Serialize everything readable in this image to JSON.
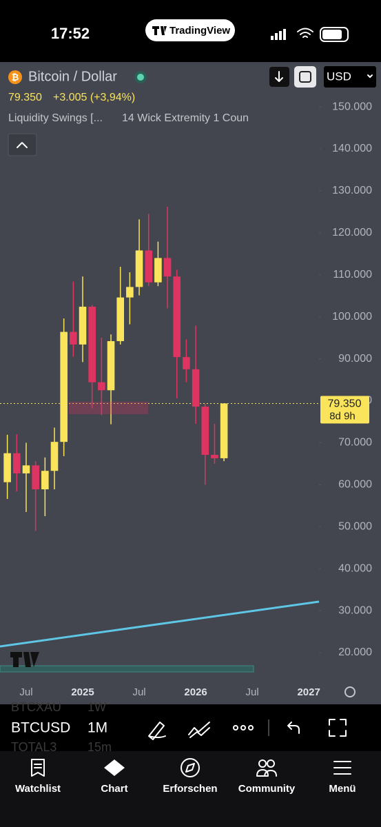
{
  "status_bar": {
    "time": "17:52",
    "app": "TradingView"
  },
  "header": {
    "symbol": "Bitcoin / Dollar",
    "price": "79.350",
    "change": "+3.005 (+3,94%)",
    "indicator": "Liquidity Swings [...",
    "indicator_params": "14 Wick Extremity 1 Coun",
    "currency": "USD"
  },
  "chart_data": {
    "type": "candlestick",
    "categories": [
      null,
      null,
      "Jul",
      null,
      null,
      null,
      null,
      null,
      "2025",
      null,
      null,
      null,
      null,
      null,
      "Jul",
      null,
      null,
      null,
      null,
      null,
      "2026",
      null,
      null,
      null,
      null,
      null,
      "Jul",
      null,
      null,
      null,
      null,
      null,
      "2027"
    ],
    "open": [
      60600,
      67500,
      62700,
      64600,
      58900,
      63300,
      70200,
      96400,
      93400,
      102400,
      84400,
      82500,
      94200,
      104600,
      107100,
      115800,
      108200,
      114000,
      109600,
      90400,
      87500,
      78600,
      67100,
      66300,
      null,
      null,
      null,
      null,
      null,
      null,
      null,
      null,
      null
    ],
    "high": [
      71900,
      72000,
      70000,
      65600,
      66500,
      73600,
      99600,
      108400,
      109600,
      102800,
      95000,
      95800,
      111900,
      110600,
      123200,
      124500,
      117900,
      126200,
      111200,
      94600,
      97900,
      79300,
      74500,
      79400,
      null,
      null,
      null,
      null,
      null,
      null,
      null,
      null,
      null
    ],
    "low": [
      56600,
      58400,
      53500,
      49000,
      52500,
      58900,
      66800,
      90500,
      89200,
      78200,
      76600,
      74400,
      93400,
      98200,
      105100,
      107300,
      107300,
      102000,
      80600,
      84400,
      74500,
      60000,
      65000,
      65600,
      null,
      null,
      null,
      null,
      null,
      null,
      null,
      null,
      null
    ],
    "close": [
      67500,
      62700,
      64600,
      58900,
      63300,
      70200,
      96400,
      93400,
      102400,
      84400,
      82500,
      94200,
      104600,
      107100,
      115800,
      108200,
      114000,
      109600,
      90400,
      87500,
      78600,
      67100,
      66300,
      79350,
      null,
      null,
      null,
      null,
      null,
      null,
      null,
      null,
      null
    ],
    "up_color": "#f9e45b",
    "down_color": "#de3461",
    "ylim": [
      13760,
      160680
    ],
    "yticks": [
      {
        "value": 20000,
        "label": "20.000"
      },
      {
        "value": 30000,
        "label": "30.000"
      },
      {
        "value": 40000,
        "label": "40.000"
      },
      {
        "value": 50000,
        "label": "50.000"
      },
      {
        "value": 60000,
        "label": "60.000"
      },
      {
        "value": 70000,
        "label": "70.000"
      },
      {
        "value": 80000,
        "label": "80.000"
      },
      {
        "value": 90000,
        "label": "90.000"
      },
      {
        "value": 100000,
        "label": "100.000"
      },
      {
        "value": 110000,
        "label": "110.000"
      },
      {
        "value": 120000,
        "label": "120.000"
      },
      {
        "value": 130000,
        "label": "130.000"
      },
      {
        "value": 140000,
        "label": "140.000"
      },
      {
        "value": 150000,
        "label": "150.000"
      }
    ],
    "last_price": {
      "value": 79350,
      "label": "79.350"
    },
    "countdown": "8d 9h",
    "grid": false
  },
  "toolbar": {
    "symbol": "BTCUSD",
    "interval": "1M",
    "ghost_above": {
      "symbol": "BTCXAU",
      "interval": "1W"
    },
    "ghost_below": {
      "symbol": "TOTAL3",
      "interval": "15m"
    }
  },
  "tabs": [
    "Watchlist",
    "Chart",
    "Erforschen",
    "Community",
    "Menü"
  ]
}
